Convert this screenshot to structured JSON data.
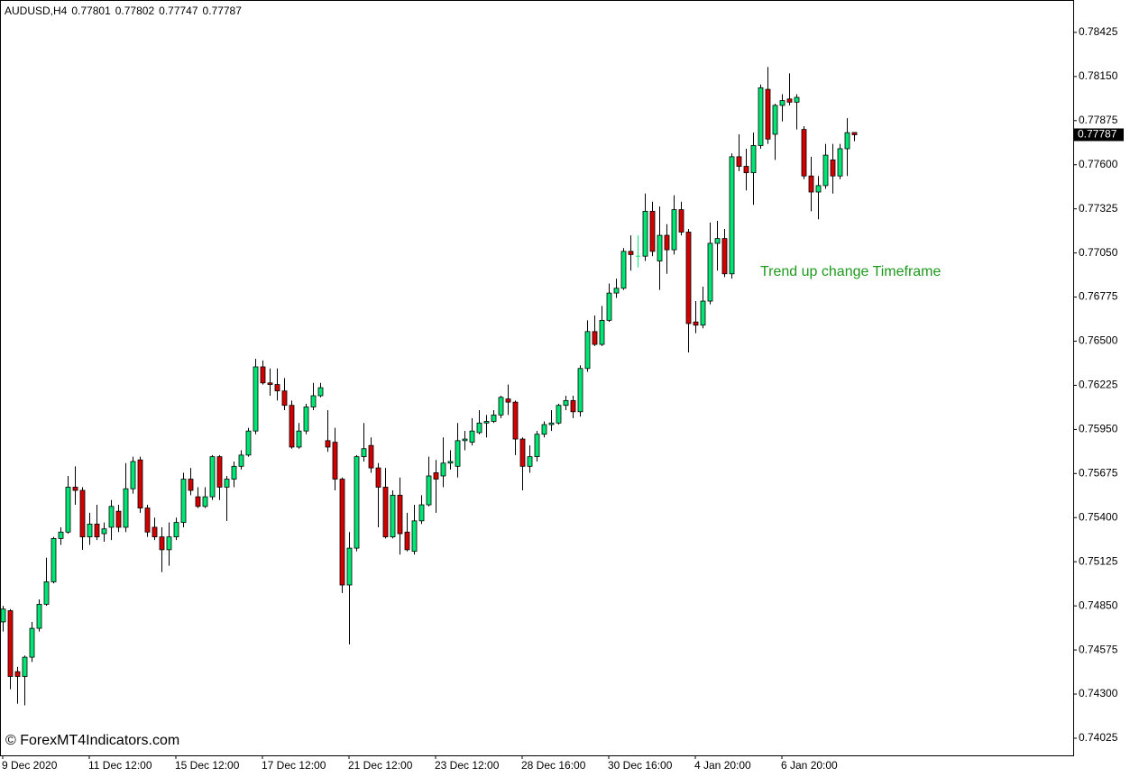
{
  "chart_data": {
    "type": "candlestick",
    "title": "AUDUSD,H4",
    "annotation": "Trend up change Timeframe",
    "watermark": "© ForexMT4Indicators.com",
    "up_color": "#00e676",
    "down_color": "#d40000",
    "categories": [
      "9 Dec 2020",
      null,
      null,
      null,
      null,
      null,
      null,
      null,
      null,
      null,
      null,
      null,
      "11 Dec 12:00",
      null,
      null,
      null,
      null,
      null,
      null,
      null,
      null,
      null,
      null,
      null,
      "15 Dec 12:00",
      null,
      null,
      null,
      null,
      null,
      null,
      null,
      null,
      null,
      null,
      null,
      "17 Dec 12:00",
      null,
      null,
      null,
      null,
      null,
      null,
      null,
      null,
      null,
      null,
      null,
      "21 Dec 12:00",
      null,
      null,
      null,
      null,
      null,
      null,
      null,
      null,
      null,
      null,
      null,
      "23 Dec 12:00",
      null,
      null,
      null,
      null,
      null,
      null,
      null,
      null,
      null,
      null,
      null,
      "28 Dec 16:00",
      null,
      null,
      null,
      null,
      null,
      null,
      null,
      null,
      null,
      null,
      null,
      "30 Dec 16:00",
      null,
      null,
      null,
      null,
      null,
      null,
      null,
      null,
      null,
      null,
      null,
      "4 Jan 20:00",
      null,
      null,
      null,
      null,
      null,
      null,
      null,
      null,
      null,
      null,
      null,
      "6 Jan 20:00",
      null,
      null,
      null,
      null,
      null,
      null,
      null,
      null,
      null,
      null
    ],
    "open": [
      0.7475,
      0.7482,
      0.7444,
      0.7441,
      0.7453,
      0.7471,
      0.7486,
      0.75,
      0.7527,
      0.7531,
      0.7559,
      0.7557,
      0.7528,
      0.7536,
      0.753,
      0.7534,
      0.7544,
      0.7534,
      0.7558,
      0.7576,
      0.7546,
      0.7534,
      0.7528,
      0.752,
      0.7528,
      0.7537,
      0.7564,
      0.7553,
      0.7547,
      0.7553,
      0.7578,
      0.7559,
      0.7564,
      0.7572,
      0.7579,
      0.7594,
      0.7634,
      0.7624,
      0.7623,
      0.7619,
      0.761,
      0.7584,
      0.7594,
      0.7609,
      0.7616,
      0.7588,
      0.7587,
      0.7564,
      0.7498,
      0.7521,
      0.7578,
      0.7585,
      0.7571,
      0.7559,
      0.7528,
      0.7554,
      0.7531,
      0.7519,
      0.7538,
      0.7548,
      0.7568,
      0.7566,
      0.7574,
      0.7572,
      0.7588,
      0.7587,
      0.7593,
      0.7599,
      0.76,
      0.7604,
      0.7614,
      0.7612,
      0.7589,
      0.7572,
      0.7578,
      0.7592,
      0.7598,
      0.7599,
      0.761,
      0.7613,
      0.7606,
      0.7633,
      0.7656,
      0.7648,
      0.7663,
      0.768,
      0.7683,
      0.7706,
      0.7703,
      0.7703,
      0.7731,
      0.77,
      0.7716,
      0.7707,
      0.7732,
      0.7718,
      0.7662,
      0.766,
      0.7675,
      0.7711,
      0.7714,
      0.7692,
      0.7765,
      0.7759,
      0.7755,
      0.7772,
      0.7807,
      0.7779,
      0.7797,
      0.7801,
      0.7799,
      0.7782,
      0.7753,
      0.7743,
      0.7747,
      0.7763,
      0.7753,
      0.777,
      0.77801
    ],
    "high": [
      0.7485,
      0.7483,
      0.7447,
      0.7454,
      0.7475,
      0.7489,
      0.7515,
      0.7528,
      0.7534,
      0.7566,
      0.7572,
      0.7559,
      0.7543,
      0.7548,
      0.7537,
      0.7551,
      0.7548,
      0.7574,
      0.7578,
      0.7578,
      0.7548,
      0.754,
      0.7534,
      0.7537,
      0.754,
      0.7568,
      0.7571,
      0.7559,
      0.7559,
      0.7579,
      0.7579,
      0.7566,
      0.7575,
      0.7582,
      0.7596,
      0.7639,
      0.7638,
      0.7633,
      0.7633,
      0.7627,
      0.7613,
      0.7599,
      0.7611,
      0.7624,
      0.7624,
      0.7607,
      0.7596,
      0.7565,
      0.7531,
      0.7579,
      0.7599,
      0.759,
      0.7574,
      0.7571,
      0.7557,
      0.7565,
      0.7543,
      0.7548,
      0.7554,
      0.7578,
      0.7576,
      0.759,
      0.7582,
      0.7599,
      0.7594,
      0.7602,
      0.7607,
      0.7604,
      0.7607,
      0.7616,
      0.7623,
      0.7613,
      0.759,
      0.7585,
      0.7594,
      0.76,
      0.7607,
      0.7611,
      0.7616,
      0.7616,
      0.7635,
      0.7663,
      0.7666,
      0.7672,
      0.7686,
      0.7689,
      0.7708,
      0.7716,
      0.7716,
      0.7742,
      0.7737,
      0.7734,
      0.7723,
      0.7741,
      0.7737,
      0.772,
      0.7675,
      0.7684,
      0.7724,
      0.7725,
      0.772,
      0.7767,
      0.7779,
      0.777,
      0.778,
      0.781,
      0.7821,
      0.7798,
      0.7804,
      0.7817,
      0.7804,
      0.7784,
      0.7765,
      0.7753,
      0.7773,
      0.7773,
      0.7773,
      0.7789,
      0.77802
    ],
    "low": [
      0.7469,
      0.7433,
      0.7424,
      0.7423,
      0.745,
      0.7469,
      0.7485,
      0.7499,
      0.7523,
      0.753,
      0.7548,
      0.752,
      0.7523,
      0.7526,
      0.7525,
      0.7526,
      0.7531,
      0.7531,
      0.7555,
      0.7543,
      0.7528,
      0.7526,
      0.7506,
      0.751,
      0.7526,
      0.7534,
      0.7554,
      0.7546,
      0.7546,
      0.7551,
      0.7551,
      0.7538,
      0.7559,
      0.757,
      0.7578,
      0.7592,
      0.7623,
      0.7616,
      0.7613,
      0.7607,
      0.7583,
      0.7583,
      0.7592,
      0.7607,
      0.7615,
      0.7581,
      0.7557,
      0.7493,
      0.7461,
      0.7519,
      0.7575,
      0.7568,
      0.7534,
      0.7527,
      0.7527,
      0.7517,
      0.7519,
      0.7517,
      0.7536,
      0.7547,
      0.7543,
      0.7559,
      0.757,
      0.7565,
      0.7582,
      0.7585,
      0.7592,
      0.759,
      0.7599,
      0.7602,
      0.7604,
      0.7579,
      0.7557,
      0.7568,
      0.7575,
      0.759,
      0.7594,
      0.7598,
      0.7607,
      0.7602,
      0.7603,
      0.7631,
      0.7647,
      0.7647,
      0.7662,
      0.7677,
      0.7682,
      0.7694,
      0.7696,
      0.77,
      0.7703,
      0.7682,
      0.7692,
      0.7704,
      0.7716,
      0.7643,
      0.7655,
      0.7658,
      0.7673,
      0.7694,
      0.769,
      0.7689,
      0.7756,
      0.7744,
      0.7735,
      0.777,
      0.7773,
      0.7763,
      0.7787,
      0.7797,
      0.7782,
      0.7751,
      0.7731,
      0.7726,
      0.7745,
      0.7742,
      0.7751,
      0.7753,
      0.77747
    ],
    "close": [
      0.7483,
      0.7441,
      0.7441,
      0.7453,
      0.7471,
      0.7486,
      0.75,
      0.7527,
      0.7531,
      0.7559,
      0.7557,
      0.7528,
      0.7536,
      0.7528,
      0.7533,
      0.7547,
      0.7534,
      0.7558,
      0.7575,
      0.7546,
      0.7531,
      0.7528,
      0.752,
      0.7528,
      0.7537,
      0.7564,
      0.7557,
      0.7547,
      0.7553,
      0.7578,
      0.7559,
      0.7564,
      0.7572,
      0.7579,
      0.7594,
      0.7634,
      0.7624,
      0.7623,
      0.7619,
      0.761,
      0.7584,
      0.7594,
      0.7609,
      0.7616,
      0.7621,
      0.7584,
      0.7564,
      0.7498,
      0.7521,
      0.7578,
      0.7583,
      0.7571,
      0.7559,
      0.7528,
      0.7554,
      0.753,
      0.752,
      0.7538,
      0.7548,
      0.7566,
      0.7564,
      0.7574,
      0.7575,
      0.7588,
      0.7589,
      0.7594,
      0.7599,
      0.76,
      0.7604,
      0.7615,
      0.7612,
      0.7589,
      0.7572,
      0.7578,
      0.7592,
      0.7598,
      0.7599,
      0.761,
      0.7613,
      0.7606,
      0.7633,
      0.7656,
      0.7648,
      0.7663,
      0.768,
      0.7683,
      0.7706,
      0.7704,
      0.7703,
      0.7731,
      0.7706,
      0.7716,
      0.7707,
      0.7732,
      0.7718,
      0.7661,
      0.766,
      0.7675,
      0.7711,
      0.7714,
      0.7692,
      0.7765,
      0.7759,
      0.7755,
      0.7772,
      0.7808,
      0.7776,
      0.7797,
      0.78,
      0.7799,
      0.7802,
      0.7753,
      0.7743,
      0.7747,
      0.7766,
      0.7753,
      0.777,
      0.778,
      0.77787
    ],
    "ylim": [
      0.73918,
      0.78627
    ],
    "yticks": [
      0.78425,
      {
        "value": 0.7815,
        "label": "0.78150"
      },
      0.77875,
      {
        "value": 0.776,
        "label": "0.77600"
      },
      0.77325,
      {
        "value": 0.7705,
        "label": "0.77050"
      },
      0.76775,
      {
        "value": 0.765,
        "label": "0.76500"
      },
      0.76225,
      {
        "value": 0.7595,
        "label": "0.75950"
      },
      0.75675,
      {
        "value": 0.754,
        "label": "0.75400"
      },
      0.75125,
      {
        "value": 0.7485,
        "label": "0.74850"
      },
      0.74575,
      {
        "value": 0.743,
        "label": "0.74300"
      },
      0.74025
    ],
    "grid": false
  }
}
